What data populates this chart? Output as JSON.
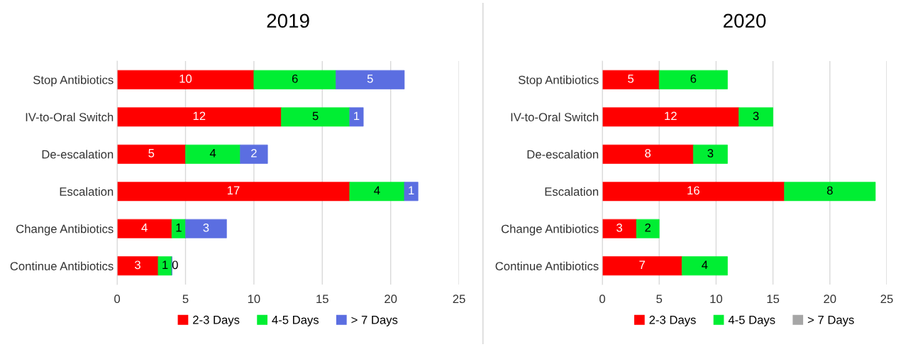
{
  "chart_data": [
    {
      "type": "bar",
      "title": "2019",
      "orientation": "horizontal",
      "stacked": true,
      "categories": [
        "Stop Antibiotics",
        "IV-to-Oral Switch",
        "De-escalation",
        "Escalation",
        "Change Antibiotics",
        "Continue Antibiotics"
      ],
      "series": [
        {
          "name": "2-3 Days",
          "color": "#ff0000",
          "values": [
            10,
            12,
            5,
            17,
            4,
            3
          ]
        },
        {
          "name": "4-5 Days",
          "color": "#00ee33",
          "values": [
            6,
            5,
            4,
            4,
            1,
            1
          ]
        },
        {
          "name": "> 7 Days",
          "color": "#5b6ee1",
          "values": [
            5,
            1,
            2,
            1,
            3,
            0
          ]
        }
      ],
      "xlim": [
        0,
        25
      ],
      "xticks": [
        0,
        5,
        10,
        15,
        20,
        25
      ],
      "grid": "x",
      "legend": "bottom",
      "data_labels": true
    },
    {
      "type": "bar",
      "title": "2020",
      "orientation": "horizontal",
      "stacked": true,
      "categories": [
        "Stop Antibiotics",
        "IV-to-Oral Switch",
        "De-escalation",
        "Escalation",
        "Change Antibiotics",
        "Continue Antibiotics"
      ],
      "series": [
        {
          "name": "2-3 Days",
          "color": "#ff0000",
          "values": [
            5,
            12,
            8,
            16,
            3,
            7
          ]
        },
        {
          "name": "4-5 Days",
          "color": "#00ee33",
          "values": [
            6,
            3,
            3,
            8,
            2,
            4
          ]
        },
        {
          "name": "> 7 Days",
          "color": "#a6a6a6",
          "values": [
            null,
            null,
            null,
            null,
            null,
            null
          ]
        }
      ],
      "xlim": [
        0,
        25
      ],
      "xticks": [
        0,
        5,
        10,
        15,
        20,
        25
      ],
      "grid": "x",
      "legend": "bottom",
      "data_labels": true
    }
  ]
}
